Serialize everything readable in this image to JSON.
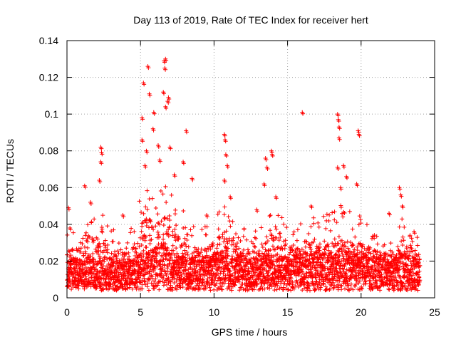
{
  "chart_data": {
    "type": "scatter",
    "title": "Day 113 of 2019, Rate Of TEC Index for receiver hert",
    "xlabel": "GPS time / hours",
    "ylabel": "ROTI / TECUs",
    "xlim": [
      0,
      25
    ],
    "ylim": [
      0,
      0.14
    ],
    "x_ticks": [
      0,
      5,
      10,
      15,
      20,
      25
    ],
    "x_tick_labels": [
      "0",
      "5",
      "10",
      "15",
      "20",
      "25"
    ],
    "y_ticks": [
      0,
      0.02,
      0.04,
      0.06,
      0.08,
      0.1,
      0.12,
      0.14
    ],
    "y_tick_labels": [
      "0",
      "0.02",
      "0.04",
      "0.06",
      "0.08",
      "0.1",
      "0.12",
      "0.14"
    ],
    "grid": true,
    "marker": "+",
    "series_color": "#ff0000",
    "data_time_range": [
      0,
      24
    ],
    "envelope": {
      "x": [
        0,
        0.5,
        1,
        1.5,
        2,
        2.3,
        2.5,
        3,
        3.5,
        4,
        4.5,
        5,
        5.3,
        5.6,
        6,
        6.3,
        6.7,
        7,
        7.5,
        8,
        8.5,
        9,
        9.5,
        10,
        10.5,
        10.8,
        11,
        11.5,
        12,
        12.5,
        13,
        13.5,
        13.8,
        14,
        14.5,
        15,
        15.5,
        16,
        16.5,
        17,
        17.5,
        18,
        18.5,
        19,
        19.5,
        20,
        20.5,
        21,
        21.5,
        22,
        22.5,
        22.8,
        23,
        23.5,
        24
      ],
      "base": [
        0.012,
        0.014,
        0.013,
        0.014,
        0.013,
        0.014,
        0.013,
        0.012,
        0.012,
        0.012,
        0.013,
        0.016,
        0.02,
        0.018,
        0.018,
        0.02,
        0.02,
        0.016,
        0.015,
        0.015,
        0.015,
        0.015,
        0.015,
        0.016,
        0.017,
        0.017,
        0.016,
        0.015,
        0.014,
        0.013,
        0.014,
        0.015,
        0.016,
        0.015,
        0.015,
        0.014,
        0.015,
        0.016,
        0.016,
        0.016,
        0.016,
        0.016,
        0.017,
        0.017,
        0.016,
        0.016,
        0.015,
        0.014,
        0.013,
        0.013,
        0.014,
        0.016,
        0.015,
        0.014,
        0.013
      ],
      "upper": [
        0.035,
        0.04,
        0.044,
        0.046,
        0.05,
        0.065,
        0.045,
        0.038,
        0.036,
        0.036,
        0.04,
        0.06,
        0.07,
        0.065,
        0.06,
        0.065,
        0.07,
        0.06,
        0.05,
        0.048,
        0.04,
        0.038,
        0.04,
        0.045,
        0.05,
        0.055,
        0.05,
        0.042,
        0.038,
        0.035,
        0.038,
        0.045,
        0.06,
        0.055,
        0.045,
        0.042,
        0.044,
        0.046,
        0.046,
        0.045,
        0.045,
        0.047,
        0.052,
        0.05,
        0.046,
        0.045,
        0.04,
        0.036,
        0.034,
        0.034,
        0.04,
        0.05,
        0.045,
        0.04,
        0.036
      ]
    },
    "spike_points": [
      {
        "x": 0.1,
        "y": 0.049
      },
      {
        "x": 0.2,
        "y": 0.038
      },
      {
        "x": 1.2,
        "y": 0.061
      },
      {
        "x": 1.6,
        "y": 0.052
      },
      {
        "x": 2.3,
        "y": 0.082
      },
      {
        "x": 2.35,
        "y": 0.079
      },
      {
        "x": 2.3,
        "y": 0.074
      },
      {
        "x": 2.2,
        "y": 0.064
      },
      {
        "x": 3.8,
        "y": 0.045
      },
      {
        "x": 5.1,
        "y": 0.098
      },
      {
        "x": 5.1,
        "y": 0.086
      },
      {
        "x": 5.2,
        "y": 0.117
      },
      {
        "x": 5.5,
        "y": 0.126
      },
      {
        "x": 5.6,
        "y": 0.111
      },
      {
        "x": 5.4,
        "y": 0.08
      },
      {
        "x": 5.3,
        "y": 0.072
      },
      {
        "x": 5.9,
        "y": 0.101
      },
      {
        "x": 5.85,
        "y": 0.092
      },
      {
        "x": 6.2,
        "y": 0.083
      },
      {
        "x": 6.3,
        "y": 0.075
      },
      {
        "x": 6.6,
        "y": 0.129
      },
      {
        "x": 6.7,
        "y": 0.13
      },
      {
        "x": 6.65,
        "y": 0.125
      },
      {
        "x": 6.55,
        "y": 0.112
      },
      {
        "x": 6.9,
        "y": 0.109
      },
      {
        "x": 6.85,
        "y": 0.107
      },
      {
        "x": 6.7,
        "y": 0.104
      },
      {
        "x": 7.0,
        "y": 0.082
      },
      {
        "x": 7.3,
        "y": 0.067
      },
      {
        "x": 7.9,
        "y": 0.074
      },
      {
        "x": 8.1,
        "y": 0.091
      },
      {
        "x": 8.5,
        "y": 0.065
      },
      {
        "x": 9.5,
        "y": 0.045
      },
      {
        "x": 10.7,
        "y": 0.089
      },
      {
        "x": 10.75,
        "y": 0.086
      },
      {
        "x": 10.8,
        "y": 0.078
      },
      {
        "x": 10.9,
        "y": 0.072
      },
      {
        "x": 10.7,
        "y": 0.064
      },
      {
        "x": 11.1,
        "y": 0.055
      },
      {
        "x": 12.9,
        "y": 0.048
      },
      {
        "x": 13.5,
        "y": 0.076
      },
      {
        "x": 13.6,
        "y": 0.071
      },
      {
        "x": 13.9,
        "y": 0.08
      },
      {
        "x": 13.95,
        "y": 0.078
      },
      {
        "x": 13.4,
        "y": 0.062
      },
      {
        "x": 14.2,
        "y": 0.055
      },
      {
        "x": 16.0,
        "y": 0.101
      },
      {
        "x": 16.6,
        "y": 0.05
      },
      {
        "x": 18.4,
        "y": 0.1
      },
      {
        "x": 18.45,
        "y": 0.097
      },
      {
        "x": 18.5,
        "y": 0.093
      },
      {
        "x": 18.5,
        "y": 0.087
      },
      {
        "x": 18.4,
        "y": 0.071
      },
      {
        "x": 18.8,
        "y": 0.072
      },
      {
        "x": 18.6,
        "y": 0.06
      },
      {
        "x": 19.0,
        "y": 0.066
      },
      {
        "x": 19.8,
        "y": 0.091
      },
      {
        "x": 19.85,
        "y": 0.089
      },
      {
        "x": 19.7,
        "y": 0.062
      },
      {
        "x": 22.6,
        "y": 0.06
      },
      {
        "x": 22.7,
        "y": 0.056
      },
      {
        "x": 22.8,
        "y": 0.05
      },
      {
        "x": 21.9,
        "y": 0.046
      },
      {
        "x": 23.6,
        "y": 0.036
      }
    ]
  }
}
